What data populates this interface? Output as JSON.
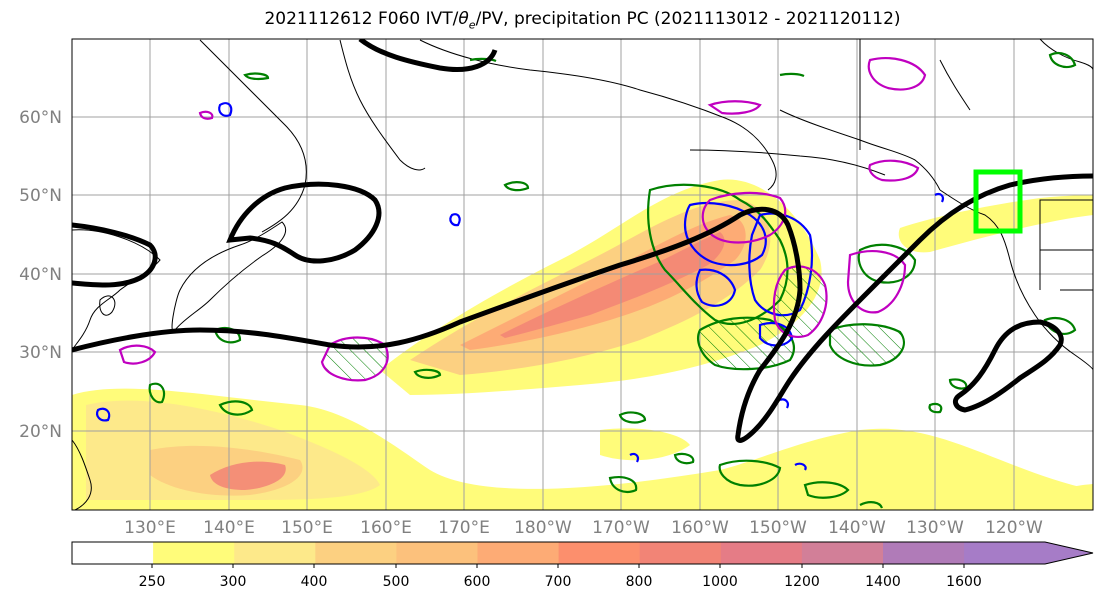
{
  "title": "2021112612 F060 IVT/θe/PV, precipitation PC (2021113012 - 2021120112)",
  "title_parts": {
    "pre": "2021112612 F060 IVT/",
    "theta": "θ",
    "sub": "e",
    "post": "/PV, precipitation PC (2021113012 - 2021120112)"
  },
  "map": {
    "lat_labels": [
      "60°N",
      "50°N",
      "40°N",
      "30°N",
      "20°N"
    ],
    "lon_labels": [
      "130°E",
      "140°E",
      "150°E",
      "160°E",
      "170°E",
      "180°W",
      "170°W",
      "160°W",
      "150°W",
      "140°W",
      "130°W",
      "120°W"
    ],
    "box_color": "#00ff00",
    "pv_contour_color": "#000000",
    "theta_e_colors": [
      "#008000",
      "#0000ff",
      "#c000c0"
    ]
  },
  "colorbar": {
    "labels": [
      "250",
      "300",
      "400",
      "500",
      "600",
      "700",
      "800",
      "1000",
      "1200",
      "1400",
      "1600"
    ],
    "colors": [
      "#ffffff",
      "#fffc7a",
      "#fde98a",
      "#fcd081",
      "#fcc17c",
      "#fdab75",
      "#fc8f6d",
      "#f28476",
      "#e57c86",
      "#d27f98",
      "#b07bb8",
      "#a67cc7"
    ]
  }
}
